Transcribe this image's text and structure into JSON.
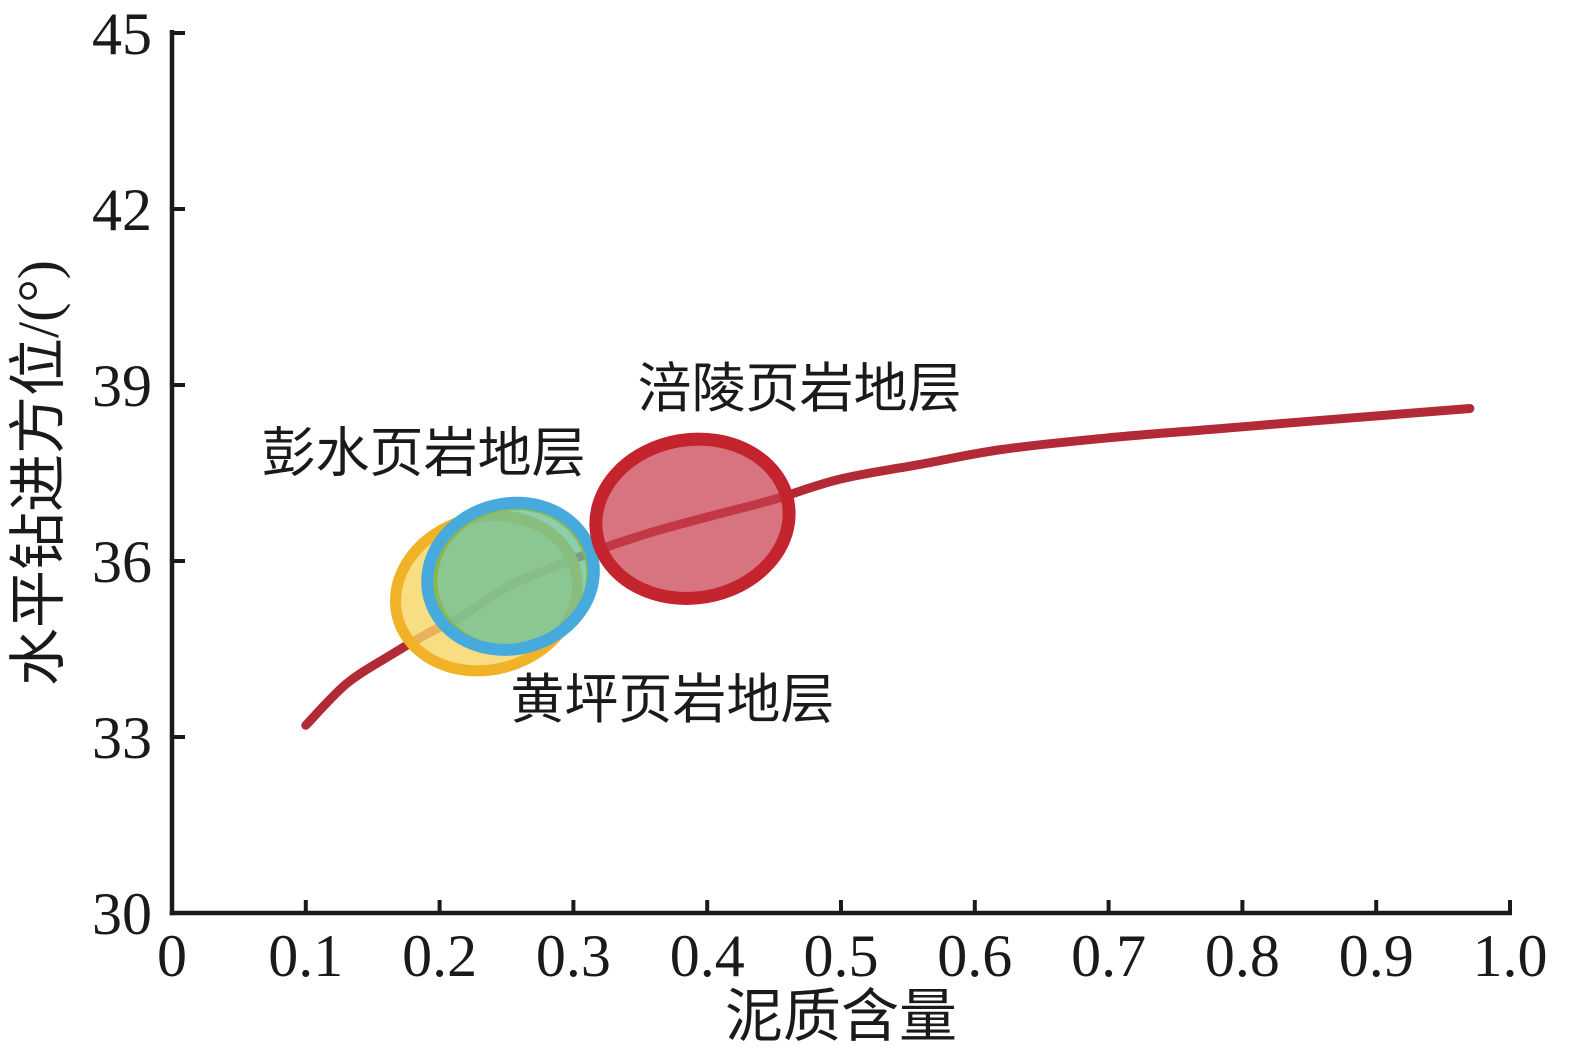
{
  "figure": {
    "background": "#ffffff"
  },
  "chart_data": {
    "type": "line",
    "title": "",
    "xlabel": "泥质含量",
    "ylabel": "水平钻进方位/(°)",
    "xlim": [
      0,
      1.0
    ],
    "ylim": [
      30,
      45
    ],
    "x_ticks": [
      0,
      0.1,
      0.2,
      0.3,
      0.4,
      0.5,
      0.6,
      0.7,
      0.8,
      0.9,
      1.0
    ],
    "x_tick_labels": [
      "0",
      "0.1",
      "0.2",
      "0.3",
      "0.4",
      "0.5",
      "0.6",
      "0.7",
      "0.8",
      "0.9",
      "1.0"
    ],
    "y_ticks": [
      30,
      33,
      36,
      39,
      42,
      45
    ],
    "y_tick_labels": [
      "30",
      "33",
      "36",
      "39",
      "42",
      "45"
    ],
    "grid": false,
    "legend_position": "none",
    "axis_color": "#1a1a1a",
    "series": [
      {
        "name": "horizontal-drilling-azimuth-vs-clay-content",
        "type": "line",
        "color": "#b22a35",
        "line_width": 9,
        "points": [
          [
            0.1,
            33.2
          ],
          [
            0.13,
            33.9
          ],
          [
            0.16,
            34.35
          ],
          [
            0.19,
            34.75
          ],
          [
            0.22,
            35.1
          ],
          [
            0.25,
            35.55
          ],
          [
            0.28,
            35.85
          ],
          [
            0.32,
            36.2
          ],
          [
            0.36,
            36.5
          ],
          [
            0.4,
            36.75
          ],
          [
            0.45,
            37.05
          ],
          [
            0.5,
            37.4
          ],
          [
            0.56,
            37.65
          ],
          [
            0.62,
            37.9
          ],
          [
            0.7,
            38.1
          ],
          [
            0.78,
            38.25
          ],
          [
            0.86,
            38.4
          ],
          [
            0.97,
            38.6
          ]
        ]
      }
    ],
    "annotations": {
      "labels": [
        {
          "id": "pengshui-label",
          "text": "彭水页岩地层",
          "color": "#e2b32c",
          "x": 0.188,
          "y": 37.85
        },
        {
          "id": "fuling-label",
          "text": "涪陵页岩地层",
          "color": "#c03440",
          "x": 0.469,
          "y": 38.95
        },
        {
          "id": "huangping-label",
          "text": "黄坪页岩地层",
          "color": "#6cc0e4",
          "x": 0.374,
          "y": 33.65
        }
      ],
      "ellipses": [
        {
          "id": "pengshui-ellipse",
          "cx": 0.235,
          "cy": 35.45,
          "rx": 0.0688,
          "ry": 1.3,
          "rotation": -16,
          "stroke": "#f2b227",
          "stroke_width": 11,
          "fill": "rgba(246,213,100,0.80)"
        },
        {
          "id": "huangping-fill-ellipse",
          "cx": 0.254,
          "cy": 35.72,
          "rx": 0.0583,
          "ry": 1.19,
          "rotation": -15,
          "stroke": "#8ab84e",
          "stroke_width": 6,
          "fill": "rgba(108,192,150,0.78)"
        },
        {
          "id": "huangping-ellipse",
          "cx": 0.253,
          "cy": 35.74,
          "rx": 0.0628,
          "ry": 1.24,
          "rotation": -15,
          "stroke": "#47aadc",
          "stroke_width": 12,
          "fill": "none"
        },
        {
          "id": "fuling-ellipse",
          "cx": 0.389,
          "cy": 36.72,
          "rx": 0.0725,
          "ry": 1.35,
          "rotation": -9,
          "stroke": "#c4242e",
          "stroke_width": 13,
          "fill": "rgba(201,62,77,0.72)"
        }
      ]
    }
  }
}
